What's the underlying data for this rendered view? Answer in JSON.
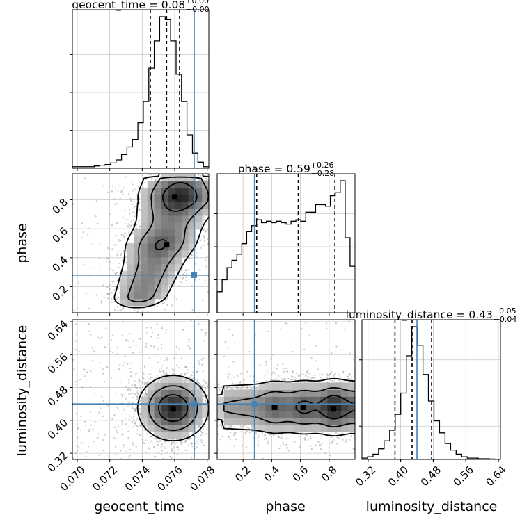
{
  "chart_data": {
    "type": "corner",
    "colors": {
      "truth": "#4682b4",
      "hist": "#000000",
      "grid": "#c8c8c8",
      "scatter": "#9a9a9a"
    },
    "grid": true,
    "truths": {
      "geocent_time": 0.0772,
      "phase": 0.28,
      "luminosity_distance": 0.44
    },
    "parameters": [
      {
        "name": "geocent_time",
        "title_value": "0.08",
        "err_plus": "+0.00",
        "err_minus": "−0.00",
        "range": [
          0.0697,
          0.0781
        ],
        "ticks": [
          0.07,
          0.072,
          0.074,
          0.076,
          0.078
        ],
        "tick_labels": [
          "0.070",
          "0.072",
          "0.074",
          "0.076",
          "0.078"
        ],
        "quantiles": [
          0.0745,
          0.0755,
          0.0763
        ],
        "hist_values": [
          1,
          1,
          1,
          1,
          1.5,
          2,
          2.5,
          3.5,
          5.5,
          9,
          14,
          19,
          30,
          44,
          66,
          84,
          100,
          98,
          84,
          62,
          44,
          22,
          10,
          4,
          1
        ]
      },
      {
        "name": "phase",
        "title_value": "0.59",
        "err_plus": "+0.26",
        "err_minus": "−0.28",
        "range": [
          0.02,
          0.98
        ],
        "ticks": [
          0.2,
          0.4,
          0.6,
          0.8
        ],
        "tick_labels": [
          "0.2",
          "0.4",
          "0.6",
          "0.8"
        ],
        "quantiles": [
          0.295,
          0.585,
          0.84
        ],
        "hist_values": [
          14,
          22,
          30,
          35,
          39,
          46,
          54,
          58,
          62,
          60,
          61,
          60,
          61,
          60,
          59,
          61,
          62,
          61,
          67,
          67,
          72,
          72,
          71,
          78,
          80,
          88,
          50,
          31
        ]
      },
      {
        "name": "luminosity_distance",
        "title_value": "0.43",
        "err_plus": "+0.05",
        "err_minus": "−0.04",
        "range": [
          0.305,
          0.645
        ],
        "ticks": [
          0.32,
          0.4,
          0.48,
          0.56,
          0.64
        ],
        "tick_labels": [
          "0.32",
          "0.40",
          "0.48",
          "0.56",
          "0.64"
        ],
        "quantiles": [
          0.386,
          0.428,
          0.476
        ],
        "hist_values": [
          1,
          2,
          4,
          8,
          14,
          22,
          34,
          50,
          78,
          100,
          86,
          64,
          44,
          29,
          20,
          12,
          7,
          4,
          2,
          1,
          1,
          0.5,
          0.5,
          0.3,
          0.2
        ]
      }
    ],
    "pair_plots": [
      {
        "x": "geocent_time",
        "y": "phase",
        "peaks": [
          {
            "x": 0.076,
            "y": 0.82
          },
          {
            "x": 0.0755,
            "y": 0.49
          }
        ]
      },
      {
        "x": "geocent_time",
        "y": "luminosity_distance",
        "peaks": [
          {
            "x": 0.0759,
            "y": 0.428
          }
        ]
      },
      {
        "x": "phase",
        "y": "luminosity_distance",
        "peaks": [
          {
            "x": 0.42,
            "y": 0.432
          },
          {
            "x": 0.62,
            "y": 0.432
          },
          {
            "x": 0.83,
            "y": 0.428
          }
        ]
      }
    ]
  }
}
